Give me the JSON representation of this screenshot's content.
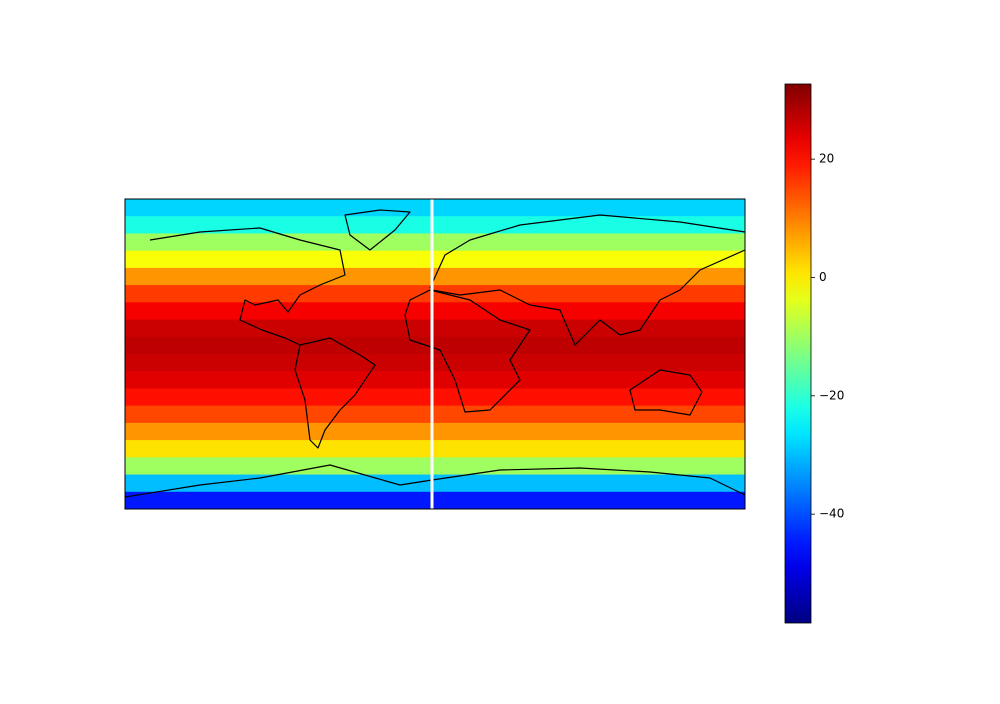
{
  "chart_data": {
    "type": "heatmap",
    "values": [
      -28,
      -22,
      -10,
      -2,
      8,
      16,
      22,
      26,
      27,
      26,
      24,
      20,
      15,
      8,
      1,
      -10,
      -30,
      -45
    ],
    "colorbar": {
      "lim": [
        -58.4,
        32.7
      ],
      "ticks": [
        {
          "value": -40,
          "label": "−40"
        },
        {
          "value": -20,
          "label": "−20"
        },
        0,
        20
      ]
    }
  }
}
